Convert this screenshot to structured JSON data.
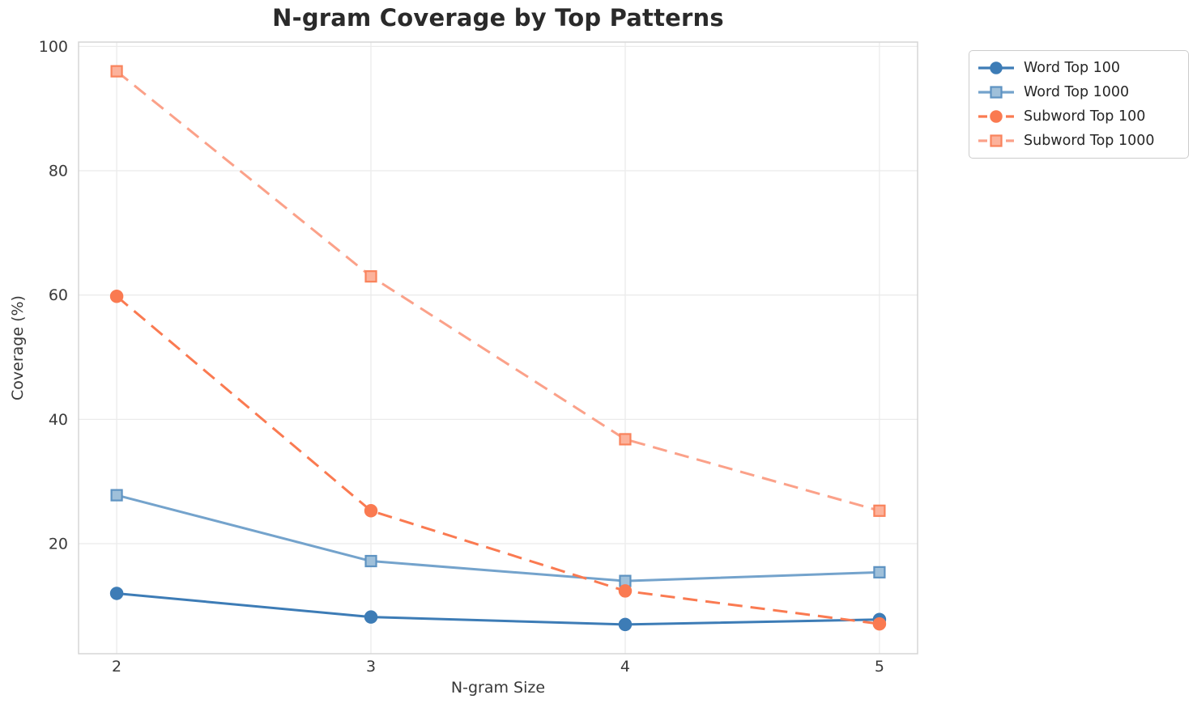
{
  "title": "N-gram Coverage by Top Patterns",
  "chart_data": {
    "type": "line",
    "title": "N-gram Coverage by Top Patterns",
    "xlabel": "N-gram Size",
    "ylabel": "Coverage (%)",
    "x": [
      2,
      3,
      4,
      5
    ],
    "xticks": [
      "2",
      "3",
      "4",
      "5"
    ],
    "yticks": [
      20,
      40,
      60,
      80,
      100
    ],
    "xlim": [
      1.85,
      5.15
    ],
    "ylim": [
      2.3,
      100.7
    ],
    "grid": true,
    "legend_position": "outside-upper-right",
    "series": [
      {
        "name": "Word Top 100",
        "values": [
          12,
          8.2,
          7,
          7.8
        ],
        "color": "#3d7cb6",
        "marker": "circle",
        "marker_fill": "#3d7cb6",
        "marker_edge": "#3d7cb6",
        "line_style": "solid"
      },
      {
        "name": "Word Top 1000",
        "values": [
          27.8,
          17.2,
          14,
          15.4
        ],
        "color": "#74a3cc",
        "marker": "square",
        "marker_fill": "#9fc0da",
        "marker_edge": "#5e93c2",
        "line_style": "solid"
      },
      {
        "name": "Subword Top 100",
        "values": [
          59.8,
          25.3,
          12.4,
          7.1
        ],
        "color": "#fa7a51",
        "marker": "circle",
        "marker_fill": "#fa7a51",
        "marker_edge": "#fa7a51",
        "line_style": "dashed"
      },
      {
        "name": "Subword Top 1000",
        "values": [
          96,
          63,
          36.8,
          25.3
        ],
        "color": "#fba189",
        "marker": "square",
        "marker_fill": "#fcb29b",
        "marker_edge": "#f9835c",
        "line_style": "dashed"
      }
    ]
  },
  "colors": {
    "grid": "#ebebeb",
    "spine": "#d5d5d5",
    "tick_text": "#3a3a3a",
    "background": "#ffffff"
  }
}
